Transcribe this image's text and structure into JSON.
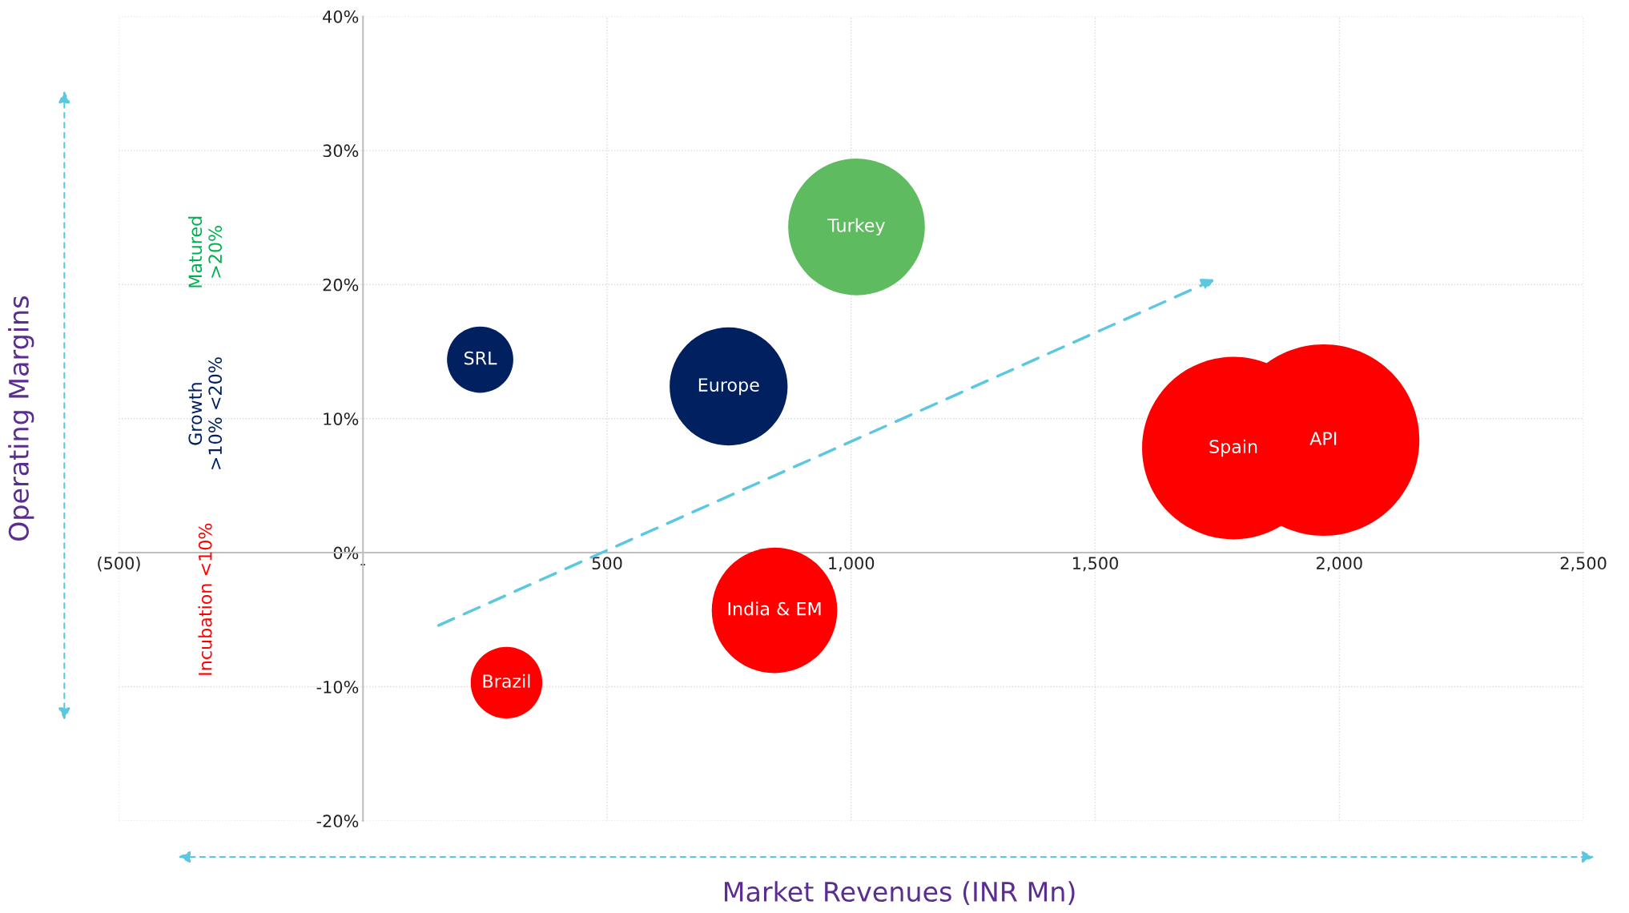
{
  "chart_data": {
    "type": "bubble",
    "xlabel": "Market Revenues (INR Mn)",
    "ylabel": "Operating Margins",
    "xlim": [
      -500,
      2500
    ],
    "xticks": [
      {
        "value": -500,
        "label": "(500)"
      },
      {
        "value": 0,
        "label": "-"
      },
      {
        "value": 500,
        "label": "500"
      },
      {
        "value": 1000,
        "label": "1,000"
      },
      {
        "value": 1500,
        "label": "1,500"
      },
      {
        "value": 2000,
        "label": "2,000"
      },
      {
        "value": 2500,
        "label": "2,500"
      }
    ],
    "ylim": [
      -20,
      40
    ],
    "yticks": [
      {
        "value": -20,
        "label": "-20%"
      },
      {
        "value": -10,
        "label": "-10%"
      },
      {
        "value": 0,
        "label": "0%"
      },
      {
        "value": 10,
        "label": "10%"
      },
      {
        "value": 20,
        "label": "20%"
      },
      {
        "value": 30,
        "label": "30%"
      },
      {
        "value": 40,
        "label": "40%"
      }
    ],
    "grid": true,
    "series": [
      {
        "name": "Turkey",
        "color": "#5fbb5f",
        "x": [
          1011
        ],
        "values": [
          24.3
        ],
        "sizes": [
          0.51
        ]
      },
      {
        "name": "SRL",
        "color": "#002060",
        "x": [
          240
        ],
        "values": [
          14.4
        ],
        "sizes": [
          0.12
        ]
      },
      {
        "name": "Europe",
        "color": "#002060",
        "x": [
          749
        ],
        "values": [
          12.4
        ],
        "sizes": [
          0.38
        ]
      },
      {
        "name": "Spain",
        "color": "#ff0000",
        "x": [
          1783
        ],
        "values": [
          7.8
        ],
        "sizes": [
          0.91
        ]
      },
      {
        "name": "API",
        "color": "#ff0000",
        "x": [
          1968
        ],
        "values": [
          8.4
        ],
        "sizes": [
          1
        ]
      },
      {
        "name": "India & EM",
        "color": "#ff0000",
        "x": [
          843
        ],
        "values": [
          -4.3
        ],
        "sizes": [
          0.43
        ]
      },
      {
        "name": "Brazil",
        "color": "#ff0000",
        "x": [
          294
        ],
        "values": [
          -9.7
        ],
        "sizes": [
          0.14
        ]
      }
    ],
    "annotations": [
      "Matured\n>20%",
      "Growth\n>10% <20%",
      "Incubation <10%"
    ]
  }
}
